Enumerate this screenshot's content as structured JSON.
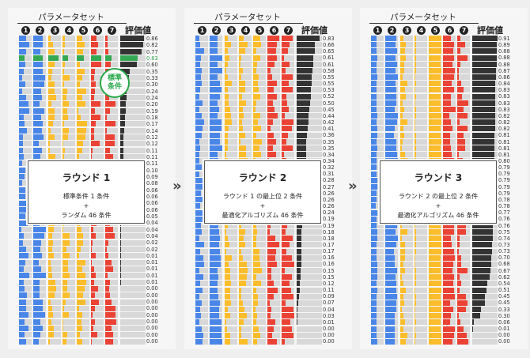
{
  "colors": {
    "blue": "#4a86e8",
    "yellow": "#fbbd2c",
    "red": "#ea4335",
    "black": "#333333",
    "green": "#34a853",
    "empty": "#d8d8d8"
  },
  "header_label": "パラメータセット",
  "eval_label": "評価値",
  "param_numbers": [
    "1",
    "2",
    "3",
    "4",
    "5",
    "6",
    "7"
  ],
  "param_colors": [
    "blue",
    "blue",
    "yellow",
    "yellow",
    "yellow",
    "red",
    "red"
  ],
  "arrows": [
    "»",
    "»"
  ],
  "panels": [
    {
      "title": "ラウンド 1",
      "line1": "標準条件 1 条件",
      "plus": "+",
      "line2": "ランダム 46 条件",
      "highlight_row": 3,
      "highlight_label": "標準\n条件",
      "eval": [
        0.86,
        0.82,
        0.77,
        0.63,
        0.6,
        0.35,
        0.33,
        0.3,
        0.24,
        0.24,
        0.2,
        0.19,
        0.18,
        0.17,
        0.14,
        0.12,
        0.12,
        0.11,
        0.11,
        0.11,
        0.1,
        0.09,
        0.08,
        0.06,
        0.06,
        0.06,
        0.06,
        0.05,
        0.04,
        0.04,
        0.04,
        0.02,
        0.02,
        0.01,
        0.01,
        0.01,
        0.01,
        0.01,
        0.0,
        0.0,
        0.0,
        0.0,
        0.0,
        0.0,
        0.0,
        0.0,
        0.0
      ]
    },
    {
      "title": "ラウンド 2",
      "line1": "ラウンド 1 の最上位 2 条件",
      "plus": "+",
      "line2": "最適化アルゴリズム 46 条件",
      "highlight_row": -1,
      "eval": [
        0.83,
        0.66,
        0.65,
        0.61,
        0.61,
        0.58,
        0.55,
        0.55,
        0.53,
        0.52,
        0.5,
        0.45,
        0.44,
        0.42,
        0.41,
        0.36,
        0.35,
        0.35,
        0.34,
        0.34,
        0.32,
        0.31,
        0.28,
        0.27,
        0.26,
        0.26,
        0.26,
        0.24,
        0.19,
        0.19,
        0.18,
        0.18,
        0.17,
        0.17,
        0.16,
        0.16,
        0.15,
        0.15,
        0.12,
        0.11,
        0.09,
        0.07,
        0.04,
        0.03,
        0.01,
        0.0,
        0.0,
        0.0
      ]
    },
    {
      "title": "ラウンド 3",
      "line1": "ラウンド 2 の最上位 2 条件",
      "plus": "+",
      "line2": "最適化アルゴリズム 46 条件",
      "highlight_row": -1,
      "eval": [
        0.91,
        0.89,
        0.88,
        0.88,
        0.88,
        0.87,
        0.86,
        0.84,
        0.83,
        0.83,
        0.83,
        0.83,
        0.82,
        0.82,
        0.82,
        0.81,
        0.81,
        0.81,
        0.81,
        0.8,
        0.79,
        0.79,
        0.79,
        0.79,
        0.79,
        0.78,
        0.78,
        0.77,
        0.76,
        0.76,
        0.75,
        0.74,
        0.73,
        0.73,
        0.7,
        0.68,
        0.67,
        0.62,
        0.54,
        0.51,
        0.45,
        0.45,
        0.33,
        0.3,
        0.06,
        0.01,
        0.0,
        0.0
      ]
    }
  ]
}
